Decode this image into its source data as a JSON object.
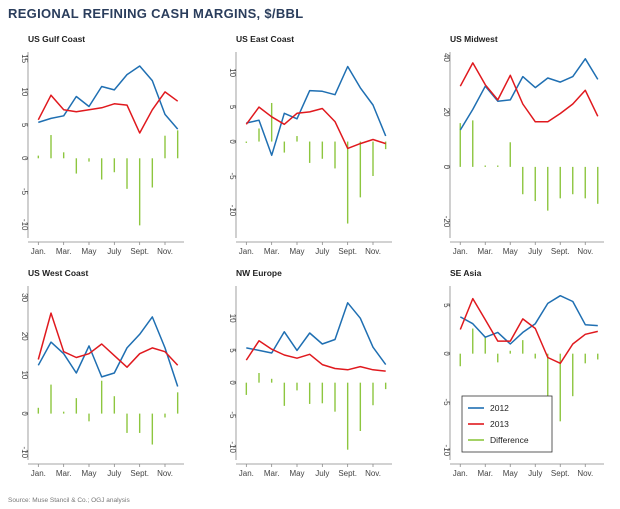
{
  "title": "REGIONAL REFINING CASH MARGINS, $/BBL",
  "source": "Source: Muse Stancil & Co.; OGJ analysis",
  "colors": {
    "y2012": "#1f6fb2",
    "y2013": "#e0191e",
    "difference": "#8dc63f"
  },
  "legend": {
    "y2012": "2012",
    "y2013": "2013",
    "difference": "Difference"
  },
  "chart_data": [
    {
      "type": "line",
      "title": "US Gulf Coast",
      "categories": [
        "Jan.",
        "Feb.",
        "Mar.",
        "Apr.",
        "May",
        "June",
        "July",
        "Aug.",
        "Sept.",
        "Oct.",
        "Nov.",
        "Dec."
      ],
      "xtick_labels": [
        "Jan.",
        "Mar.",
        "May",
        "July",
        "Sept.",
        "Nov."
      ],
      "ylim": [
        -12,
        16
      ],
      "yticks": [
        -10,
        -5,
        0,
        5,
        10,
        15
      ],
      "series": [
        {
          "name": "2012",
          "values": [
            5.4,
            6.0,
            6.4,
            9.3,
            7.8,
            10.8,
            10.3,
            12.6,
            13.9,
            11.7,
            6.6,
            4.4
          ]
        },
        {
          "name": "2013",
          "values": [
            5.8,
            9.5,
            7.3,
            7.0,
            7.3,
            7.6,
            8.2,
            8.0,
            3.8,
            7.3,
            10.0,
            8.6
          ]
        },
        {
          "name": "Difference",
          "values": [
            0.4,
            3.5,
            0.9,
            -2.3,
            -0.5,
            -3.2,
            -2.1,
            -4.6,
            -10.1,
            -4.4,
            3.4,
            4.2
          ]
        }
      ]
    },
    {
      "type": "line",
      "title": "US East Coast",
      "categories": [
        "Jan.",
        "Feb.",
        "Mar.",
        "Apr.",
        "May",
        "June",
        "July",
        "Aug.",
        "Sept.",
        "Oct.",
        "Nov.",
        "Dec."
      ],
      "xtick_labels": [
        "Jan.",
        "Mar.",
        "May",
        "July",
        "Sept.",
        "Nov."
      ],
      "ylim": [
        -14,
        13
      ],
      "yticks": [
        -10,
        -5,
        0,
        5,
        10
      ],
      "series": [
        {
          "name": "2012",
          "values": [
            2.7,
            3.1,
            -2.0,
            4.1,
            3.3,
            7.4,
            7.3,
            6.8,
            10.9,
            7.8,
            5.3,
            0.8
          ]
        },
        {
          "name": "2013",
          "values": [
            2.5,
            5.0,
            3.6,
            2.5,
            4.1,
            4.3,
            4.8,
            2.9,
            -1.0,
            -0.3,
            0.3,
            -0.3
          ]
        },
        {
          "name": "Difference",
          "values": [
            -0.2,
            1.9,
            5.6,
            -1.6,
            0.8,
            -3.1,
            -2.5,
            -3.9,
            -11.9,
            -8.1,
            -5.0,
            -1.1
          ]
        }
      ]
    },
    {
      "type": "line",
      "title": "US Midwest",
      "categories": [
        "Jan.",
        "Feb.",
        "Mar.",
        "Apr.",
        "May",
        "June",
        "July",
        "Aug.",
        "Sept.",
        "Oct.",
        "Nov.",
        "Dec."
      ],
      "xtick_labels": [
        "Jan.",
        "Mar.",
        "May",
        "July",
        "Sept.",
        "Nov."
      ],
      "ylim": [
        -26,
        42
      ],
      "yticks": [
        -20,
        0,
        20,
        40
      ],
      "series": [
        {
          "name": "2012",
          "values": [
            13.5,
            21.0,
            29.5,
            24.0,
            24.5,
            33.0,
            29.0,
            32.5,
            31.0,
            33.0,
            39.5,
            32.0
          ]
        },
        {
          "name": "2013",
          "values": [
            29.5,
            38.0,
            30.0,
            24.5,
            33.5,
            23.0,
            16.5,
            16.5,
            19.5,
            23.0,
            28.0,
            18.5
          ]
        },
        {
          "name": "Difference",
          "values": [
            16.0,
            17.0,
            0.5,
            0.5,
            9.0,
            -10.0,
            -12.5,
            -16.0,
            -11.5,
            -10.0,
            -11.5,
            -13.5
          ]
        }
      ]
    },
    {
      "type": "line",
      "title": "US West Coast",
      "categories": [
        "Jan.",
        "Feb.",
        "Mar.",
        "Apr.",
        "May",
        "June",
        "July",
        "Aug.",
        "Sept.",
        "Oct.",
        "Nov.",
        "Dec."
      ],
      "xtick_labels": [
        "Jan.",
        "Mar.",
        "May",
        "July",
        "Sept.",
        "Nov."
      ],
      "ylim": [
        -12,
        33
      ],
      "yticks": [
        -10,
        0,
        10,
        20,
        30
      ],
      "series": [
        {
          "name": "2012",
          "values": [
            12.5,
            18.5,
            15.5,
            10.5,
            17.5,
            9.5,
            10.5,
            17.0,
            20.5,
            25.0,
            17.0,
            7.0
          ]
        },
        {
          "name": "2013",
          "values": [
            14.0,
            26.0,
            16.0,
            14.5,
            15.5,
            18.0,
            15.0,
            12.0,
            15.5,
            17.0,
            16.0,
            12.5
          ]
        },
        {
          "name": "Difference",
          "values": [
            1.5,
            7.5,
            0.5,
            4.0,
            -2.0,
            8.5,
            4.5,
            -5.0,
            -5.0,
            -8.0,
            -1.0,
            5.5
          ]
        }
      ]
    },
    {
      "type": "line",
      "title": "NW Europe",
      "categories": [
        "Jan.",
        "Feb.",
        "Mar.",
        "Apr.",
        "May",
        "June",
        "July",
        "Aug.",
        "Sept.",
        "Oct.",
        "Nov.",
        "Dec."
      ],
      "xtick_labels": [
        "Jan.",
        "Mar.",
        "May",
        "July",
        "Sept.",
        "Nov."
      ],
      "ylim": [
        -12,
        15
      ],
      "yticks": [
        -10,
        -5,
        0,
        5,
        10
      ],
      "series": [
        {
          "name": "2012",
          "values": [
            5.4,
            5.0,
            4.6,
            7.9,
            5.0,
            7.7,
            6.0,
            6.7,
            12.4,
            10.0,
            5.5,
            2.8
          ]
        },
        {
          "name": "2013",
          "values": [
            3.5,
            6.5,
            5.2,
            4.3,
            3.8,
            4.4,
            2.8,
            2.2,
            2.0,
            2.5,
            2.0,
            1.8
          ]
        },
        {
          "name": "Difference",
          "values": [
            -1.9,
            1.5,
            0.6,
            -3.6,
            -1.2,
            -3.3,
            -3.2,
            -4.5,
            -10.4,
            -7.5,
            -3.5,
            -1.0
          ]
        }
      ]
    },
    {
      "type": "line",
      "title": "SE Asia",
      "categories": [
        "Jan.",
        "Feb.",
        "Mar.",
        "Apr.",
        "May",
        "June",
        "July",
        "Aug.",
        "Sept.",
        "Oct.",
        "Nov.",
        "Dec."
      ],
      "xtick_labels": [
        "Jan.",
        "Mar.",
        "May",
        "July",
        "Sept.",
        "Nov."
      ],
      "ylim": [
        -11,
        7
      ],
      "yticks": [
        -10,
        -5,
        0,
        5
      ],
      "legend_position": "bottom-left",
      "series": [
        {
          "name": "2012",
          "values": [
            3.8,
            3.1,
            1.7,
            2.2,
            1.0,
            2.2,
            3.1,
            5.2,
            6.0,
            5.4,
            3.0,
            2.9
          ]
        },
        {
          "name": "2013",
          "values": [
            2.5,
            5.7,
            3.5,
            1.3,
            1.3,
            3.6,
            2.6,
            -0.4,
            -1.0,
            1.0,
            2.0,
            2.3
          ]
        },
        {
          "name": "Difference",
          "values": [
            -1.3,
            2.6,
            1.8,
            -0.9,
            0.3,
            1.4,
            -0.5,
            -5.6,
            -7.0,
            -4.4,
            -1.0,
            -0.6
          ]
        }
      ]
    }
  ]
}
